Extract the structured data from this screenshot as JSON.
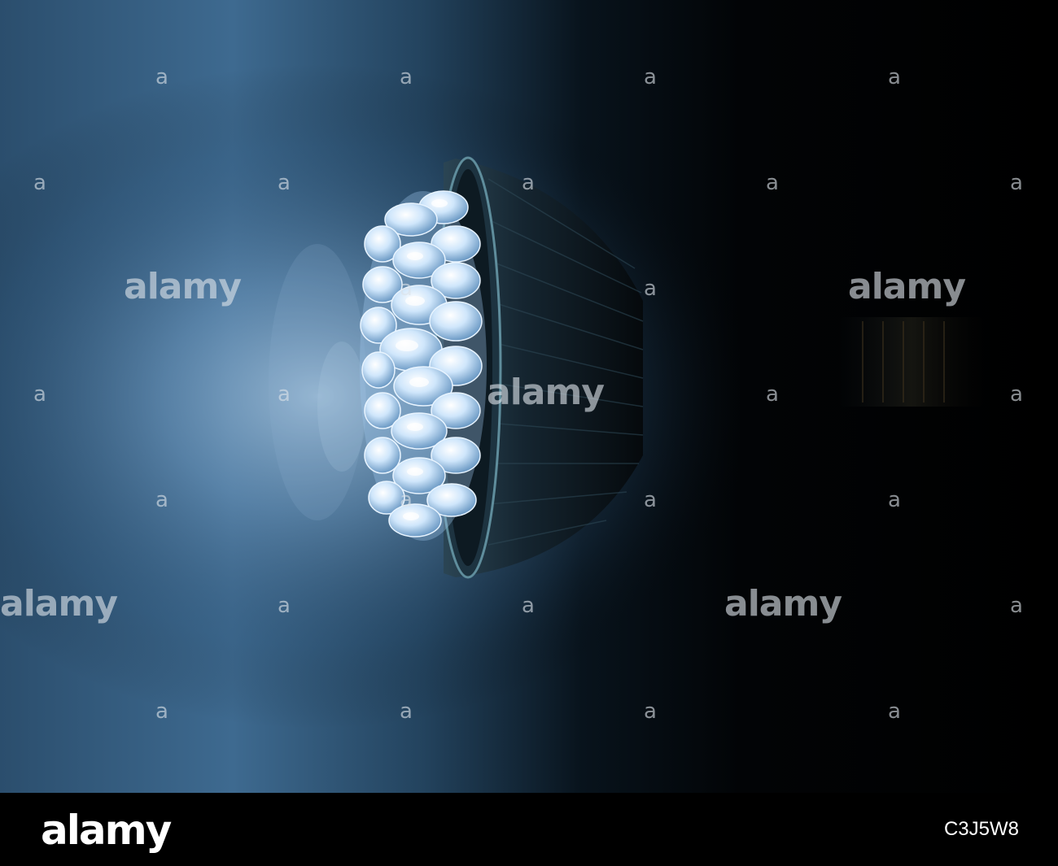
{
  "image": {
    "subject": "blue-led-bulb",
    "palette": {
      "background": "#000000",
      "glow": "#5f86a8",
      "led": "#d8ecff",
      "housing": "#13202a"
    }
  },
  "watermark": {
    "text": "alamy",
    "symbol": "a"
  },
  "footer": {
    "logo": "alamy",
    "image_id": "C3J5W8"
  }
}
